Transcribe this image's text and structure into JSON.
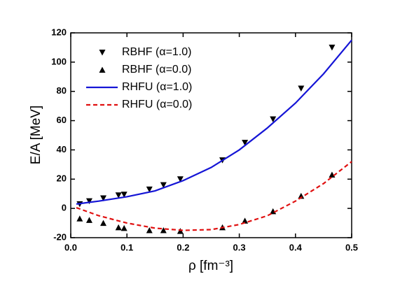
{
  "chart_data": {
    "type": "line",
    "xlabel": "ρ [fm⁻³]",
    "ylabel": "E/A  [MeV]",
    "xlim": [
      0,
      0.5
    ],
    "ylim": [
      -20,
      120
    ],
    "xticks": [
      {
        "value": 0,
        "label": "0.0"
      },
      0.1,
      0.2,
      0.3,
      0.4,
      0.5
    ],
    "yticks": [
      -20,
      0,
      20,
      40,
      60,
      80,
      100,
      120
    ],
    "legend": "upper-left",
    "series": [
      {
        "name": "RBHF (α=1.0)",
        "style": "marker-down",
        "color": "#000000",
        "x": [
          0.016,
          0.033,
          0.058,
          0.085,
          0.095,
          0.14,
          0.165,
          0.195,
          0.27,
          0.31,
          0.36,
          0.41,
          0.465
        ],
        "values": [
          3,
          5,
          7,
          9,
          9.5,
          13,
          16,
          20,
          33,
          45,
          61,
          82,
          110
        ]
      },
      {
        "name": "RBHF (α=0.0)",
        "style": "marker-up",
        "color": "#000000",
        "x": [
          0.016,
          0.033,
          0.058,
          0.085,
          0.095,
          0.14,
          0.165,
          0.195,
          0.27,
          0.31,
          0.36,
          0.41,
          0.465
        ],
        "values": [
          -7,
          -8,
          -10,
          -13,
          -13.5,
          -15,
          -15,
          -15.5,
          -13,
          -8.5,
          -2,
          8.5,
          23
        ]
      },
      {
        "name": "RHFU (α=1.0)",
        "style": "solid",
        "color": "#1515d6",
        "x": [
          0.01,
          0.05,
          0.1,
          0.15,
          0.2,
          0.25,
          0.3,
          0.35,
          0.4,
          0.45,
          0.5
        ],
        "values": [
          3,
          5,
          8,
          12,
          19,
          28,
          40,
          55,
          72,
          92,
          115
        ]
      },
      {
        "name": "RHFU (α=0.0)",
        "style": "dashed",
        "color": "#e01010",
        "x": [
          0.01,
          0.05,
          0.1,
          0.15,
          0.2,
          0.25,
          0.3,
          0.35,
          0.4,
          0.45,
          0.5
        ],
        "values": [
          0.5,
          -5,
          -10,
          -13.5,
          -15,
          -14.5,
          -11,
          -5,
          5,
          17,
          32
        ]
      }
    ]
  }
}
